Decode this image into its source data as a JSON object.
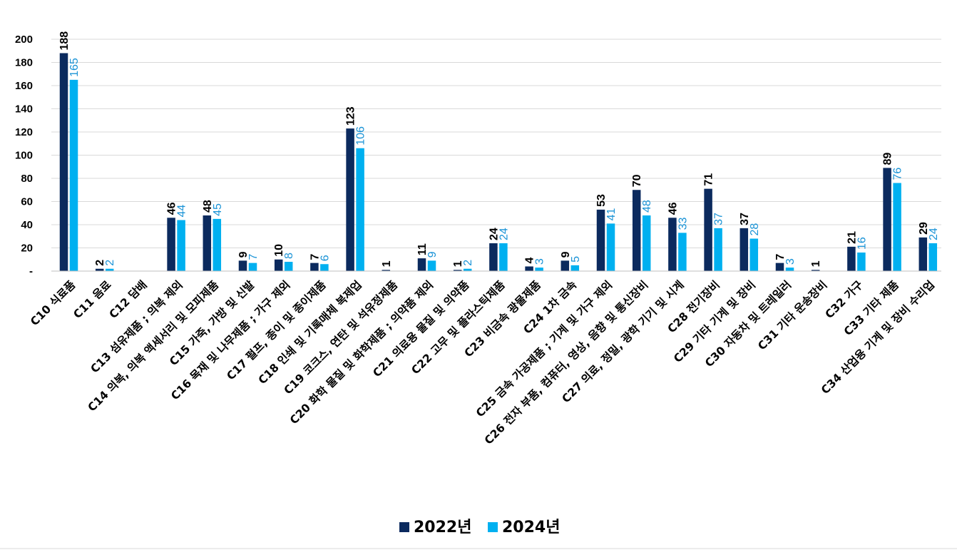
{
  "chart_data": {
    "type": "bar",
    "title": "",
    "xlabel": "",
    "ylabel": "",
    "ylim": [
      0,
      200
    ],
    "yticks": [
      0,
      20,
      40,
      60,
      80,
      100,
      120,
      140,
      160,
      180,
      200
    ],
    "ytick_labels": [
      "-",
      "20",
      "40",
      "60",
      "80",
      "100",
      "120",
      "140",
      "160",
      "180",
      "200"
    ],
    "grid": true,
    "legend_position": "bottom-center",
    "categories": [
      "C10 식료품",
      "C11 음료",
      "C12 담배",
      "C13 섬유제품 ; 의복 제외",
      "C14 의복, 의복 액세서리 및 모피제품",
      "C15 가죽, 가방 및 신발",
      "C16 목재 및 나무제품 ; 가구 제외",
      "C17 펄프, 종이 및 종이제품",
      "C18 인쇄 및 기록매체 복제업",
      "C19 코크스, 연탄 및 석유정제품",
      "C20 화학 물질 및 화학제품 ; 의약품 제외",
      "C21 의료용 물질 및 의약품",
      "C22 고무 및 플라스틱제품",
      "C23 비금속 광물제품",
      "C24 1차 금속",
      "C25 금속 가공제품 ; 기계 및 가구 제외",
      "C26 전자 부품, 컴퓨터, 영상, 음향 및 통신장비",
      "C27 의료, 정밀, 광학 기기 및 시계",
      "C28 전기장비",
      "C29 기타 기계 및 장비",
      "C30 자동차 및 트레일러",
      "C31 기타 운송장비",
      "C32 가구",
      "C33 기타 제품",
      "C34 산업용 기계 및 장비 수리업"
    ],
    "series": [
      {
        "name": "2022년",
        "color": "#0b2a5e",
        "values": [
          188,
          2,
          null,
          46,
          48,
          9,
          10,
          7,
          123,
          1,
          11,
          1,
          24,
          4,
          9,
          53,
          70,
          46,
          71,
          37,
          7,
          1,
          21,
          89,
          29
        ]
      },
      {
        "name": "2024년",
        "color": "#00b0f0",
        "values": [
          165,
          2,
          null,
          44,
          45,
          7,
          8,
          6,
          106,
          null,
          9,
          2,
          24,
          3,
          5,
          41,
          48,
          33,
          37,
          28,
          3,
          null,
          16,
          76,
          24
        ]
      }
    ]
  }
}
